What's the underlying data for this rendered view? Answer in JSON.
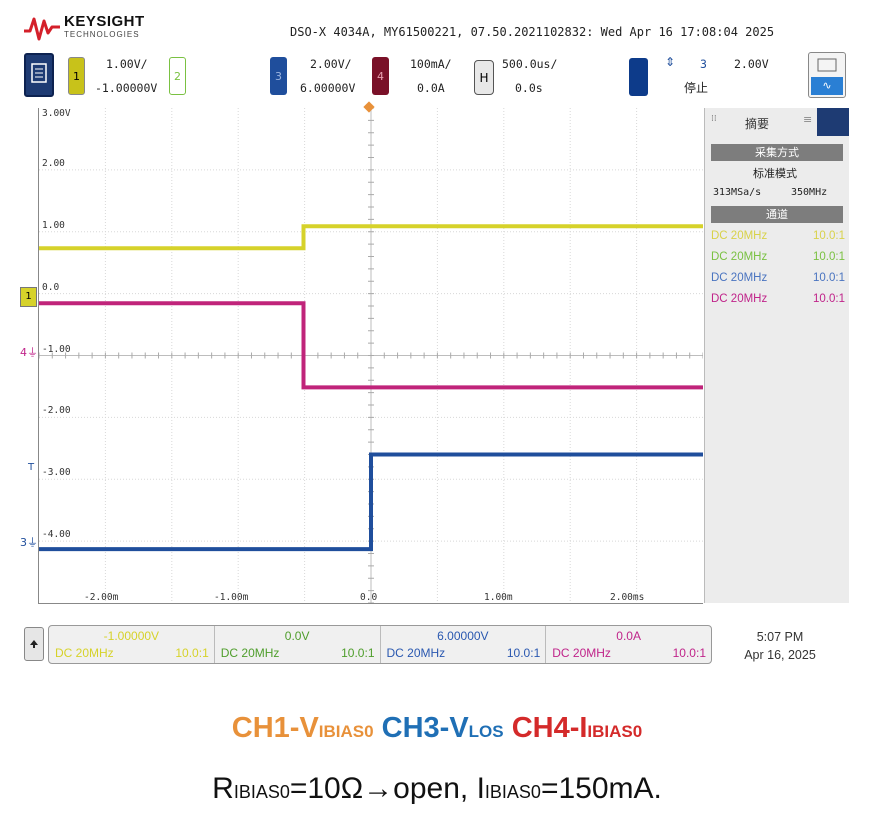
{
  "header": {
    "logo": "KEYSIGHT",
    "logo_sub": "TECHNOLOGIES",
    "instrument_info": "DSO-X 4034A, MY61500221, 07.50.2021102832: Wed Apr 16 17:08:04 2025"
  },
  "toolbar": {
    "ch1": {
      "badge": "1",
      "scale": "1.00V/",
      "offset": "-1.00000V",
      "color": "#c8c21a"
    },
    "ch2": {
      "badge": "2",
      "color": "#7ac142"
    },
    "ch3": {
      "badge": "3",
      "scale": "2.00V/",
      "offset": "6.00000V",
      "color": "#1f4e9c"
    },
    "ch4": {
      "badge": "4",
      "scale": "100mA/",
      "offset": "0.0A",
      "color": "#a5143c"
    },
    "horizontal": {
      "badge": "H",
      "scale": "500.0us/",
      "delay": "0.0s"
    },
    "trigger": {
      "source": "3",
      "level": "2.00V",
      "status": "停止"
    }
  },
  "plot": {
    "y_ticks": [
      "3.00V",
      "2.00",
      "1.00",
      "0.0",
      "-1.00",
      "-2.00",
      "-3.00",
      "-4.00"
    ],
    "x_ticks": [
      "-2.00m",
      "-1.00m",
      "0.0",
      "1.00m",
      "2.00ms"
    ],
    "markers": {
      "ch1": "1",
      "ch4": "4",
      "trigger": "T",
      "ch3": "3"
    }
  },
  "chart_data": {
    "type": "line",
    "x_unit": "ms",
    "xlim": [
      -2.95,
      2.95
    ],
    "ylim": [
      -5,
      4
    ],
    "series": [
      {
        "name": "CH1",
        "color": "#d6d22a",
        "x": [
          -2.95,
          -0.6,
          -0.6,
          2.95
        ],
        "y": [
          1.45,
          1.45,
          1.85,
          1.85
        ]
      },
      {
        "name": "CH4",
        "color": "#c0247a",
        "x": [
          -2.95,
          -0.6,
          -0.6,
          2.95
        ],
        "y": [
          0.45,
          0.45,
          -1.08,
          -1.08
        ]
      },
      {
        "name": "CH3",
        "color": "#1f4e9c",
        "x": [
          -2.95,
          0.0,
          0.0,
          2.95
        ],
        "y": [
          -4.02,
          -4.02,
          -2.3,
          -2.3
        ]
      }
    ]
  },
  "side_panel": {
    "title": "摘要",
    "acq_header": "采集方式",
    "acq_mode": "标准模式",
    "sample_rate": "313MSa/s",
    "bandwidth": "350MHz",
    "channel_header": "通道",
    "channels": [
      {
        "coupling": "DC",
        "bw": "20MHz",
        "probe": "10.0:1",
        "color": "#d8d24a"
      },
      {
        "coupling": "DC",
        "bw": "20MHz",
        "probe": "10.0:1",
        "color": "#7ac142"
      },
      {
        "coupling": "DC",
        "bw": "20MHz",
        "probe": "10.0:1",
        "color": "#4a74c0"
      },
      {
        "coupling": "DC",
        "bw": "20MHz",
        "probe": "10.0:1",
        "color": "#c0248a"
      }
    ]
  },
  "bottom_bar": {
    "cells": [
      {
        "value": "-1.00000V",
        "coupling": "DC 20MHz",
        "probe": "10.0:1",
        "color": "#d6d22a"
      },
      {
        "value": "0.0V",
        "coupling": "DC 20MHz",
        "probe": "10.0:1",
        "color": "#4f9e2c"
      },
      {
        "value": "6.00000V",
        "coupling": "DC 20MHz",
        "probe": "10.0:1",
        "color": "#2a58b0"
      },
      {
        "value": "0.0A",
        "coupling": "DC 20MHz",
        "probe": "10.0:1",
        "color": "#c0248a"
      }
    ],
    "time": "5:07 PM",
    "date": "Apr 16, 2025"
  },
  "caption": {
    "ch1_prefix": "CH1-V",
    "ch1_sub": "IBIAS0",
    "ch3_prefix": "CH3-V",
    "ch3_sub": "LOS",
    "ch4_prefix": "CH4-I",
    "ch4_sub": "IBIAS0",
    "line2_r": "R",
    "line2_r_sub": "IBIAS0",
    "line2_mid": "=10Ω→open, I",
    "line2_i_sub": "IBIAS0",
    "line2_end": "=150mA.",
    "colors": {
      "ch1": "#e8913a",
      "ch3": "#1f6fb5",
      "ch4": "#d42a2a"
    }
  }
}
